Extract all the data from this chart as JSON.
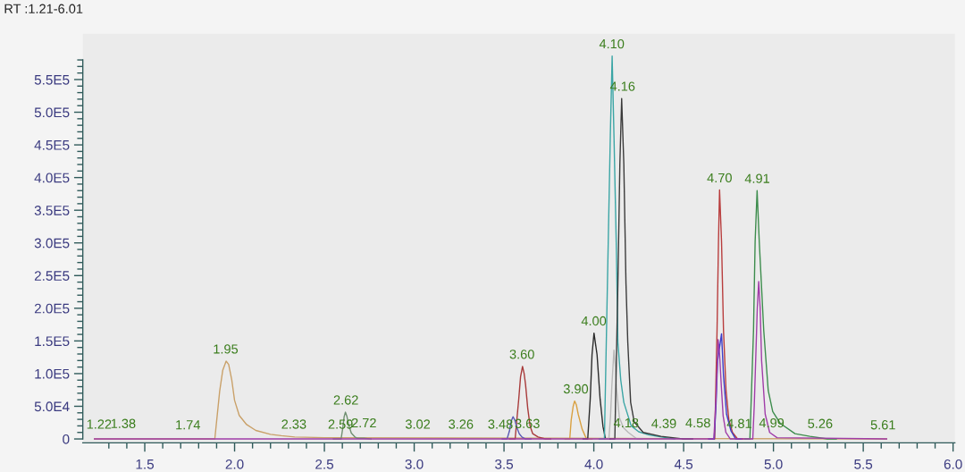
{
  "chart_data": {
    "type": "line",
    "title": "RT :1.21-6.01",
    "xlim": [
      1.155,
      6.01
    ],
    "ylim": [
      -6000,
      620000
    ],
    "xticks": [
      {
        "value": 1.3,
        "label": null
      },
      {
        "value": 1.4,
        "label": null
      },
      1.5,
      {
        "value": 1.6,
        "label": null
      },
      {
        "value": 1.7,
        "label": null
      },
      {
        "value": 1.8,
        "label": null
      },
      {
        "value": 1.9,
        "label": null
      },
      {
        "value": 2,
        "label": "2.0"
      },
      {
        "value": 2.1,
        "label": null
      },
      {
        "value": 2.2,
        "label": null
      },
      {
        "value": 2.3,
        "label": null
      },
      {
        "value": 2.4,
        "label": null
      },
      2.5,
      {
        "value": 2.6,
        "label": null
      },
      {
        "value": 2.7,
        "label": null
      },
      {
        "value": 2.8,
        "label": null
      },
      {
        "value": 2.9,
        "label": null
      },
      {
        "value": 3,
        "label": "3.0"
      },
      {
        "value": 3.1,
        "label": null
      },
      {
        "value": 3.2,
        "label": null
      },
      {
        "value": 3.3,
        "label": null
      },
      {
        "value": 3.4,
        "label": null
      },
      3.5,
      {
        "value": 3.6,
        "label": null
      },
      {
        "value": 3.7,
        "label": null
      },
      {
        "value": 3.8,
        "label": null
      },
      {
        "value": 3.9,
        "label": null
      },
      {
        "value": 4,
        "label": "4.0"
      },
      {
        "value": 4.1,
        "label": null
      },
      {
        "value": 4.2,
        "label": null
      },
      {
        "value": 4.3,
        "label": null
      },
      {
        "value": 4.4,
        "label": null
      },
      4.5,
      {
        "value": 4.6,
        "label": null
      },
      {
        "value": 4.7,
        "label": null
      },
      {
        "value": 4.8,
        "label": null
      },
      {
        "value": 4.9,
        "label": null
      },
      {
        "value": 5,
        "label": "5.0"
      },
      {
        "value": 5.1,
        "label": null
      },
      {
        "value": 5.2,
        "label": null
      },
      {
        "value": 5.3,
        "label": null
      },
      {
        "value": 5.4,
        "label": null
      },
      5.5,
      {
        "value": 5.6,
        "label": null
      },
      {
        "value": 5.7,
        "label": null
      },
      {
        "value": 5.8,
        "label": null
      },
      {
        "value": 5.9,
        "label": null
      },
      {
        "value": 6,
        "label": "6.0"
      }
    ],
    "yticks": [
      0,
      {
        "value": 10000,
        "label": null
      },
      {
        "value": 20000,
        "label": null
      },
      {
        "value": 30000,
        "label": null
      },
      {
        "value": 40000,
        "label": null
      },
      {
        "value": 50000,
        "label": "5.0E4"
      },
      {
        "value": 60000,
        "label": null
      },
      {
        "value": 70000,
        "label": null
      },
      {
        "value": 80000,
        "label": null
      },
      {
        "value": 90000,
        "label": null
      },
      {
        "value": 100000,
        "label": "1.0E5"
      },
      {
        "value": 110000,
        "label": null
      },
      {
        "value": 120000,
        "label": null
      },
      {
        "value": 130000,
        "label": null
      },
      {
        "value": 140000,
        "label": null
      },
      {
        "value": 150000,
        "label": "1.5E5"
      },
      {
        "value": 160000,
        "label": null
      },
      {
        "value": 170000,
        "label": null
      },
      {
        "value": 180000,
        "label": null
      },
      {
        "value": 190000,
        "label": null
      },
      {
        "value": 200000,
        "label": "2.0E5"
      },
      {
        "value": 210000,
        "label": null
      },
      {
        "value": 220000,
        "label": null
      },
      {
        "value": 230000,
        "label": null
      },
      {
        "value": 240000,
        "label": null
      },
      {
        "value": 250000,
        "label": "2.5E5"
      },
      {
        "value": 260000,
        "label": null
      },
      {
        "value": 270000,
        "label": null
      },
      {
        "value": 280000,
        "label": null
      },
      {
        "value": 290000,
        "label": null
      },
      {
        "value": 300000,
        "label": "3.0E5"
      },
      {
        "value": 310000,
        "label": null
      },
      {
        "value": 320000,
        "label": null
      },
      {
        "value": 330000,
        "label": null
      },
      {
        "value": 340000,
        "label": null
      },
      {
        "value": 350000,
        "label": "3.5E5"
      },
      {
        "value": 360000,
        "label": null
      },
      {
        "value": 370000,
        "label": null
      },
      {
        "value": 380000,
        "label": null
      },
      {
        "value": 390000,
        "label": null
      },
      {
        "value": 400000,
        "label": "4.0E5"
      },
      {
        "value": 410000,
        "label": null
      },
      {
        "value": 420000,
        "label": null
      },
      {
        "value": 430000,
        "label": null
      },
      {
        "value": 440000,
        "label": null
      },
      {
        "value": 450000,
        "label": "4.5E5"
      },
      {
        "value": 460000,
        "label": null
      },
      {
        "value": 470000,
        "label": null
      },
      {
        "value": 480000,
        "label": null
      },
      {
        "value": 490000,
        "label": null
      },
      {
        "value": 500000,
        "label": "5.0E5"
      },
      {
        "value": 510000,
        "label": null
      },
      {
        "value": 520000,
        "label": null
      },
      {
        "value": 530000,
        "label": null
      },
      {
        "value": 540000,
        "label": null
      },
      {
        "value": 550000,
        "label": "5.5E5"
      },
      {
        "value": 560000,
        "label": null
      },
      {
        "value": 570000,
        "label": null
      },
      {
        "value": 580000,
        "label": null
      }
    ],
    "series": [
      {
        "color": "#c9a068",
        "x": [
          1.22,
          1.89,
          1.917,
          1.934,
          1.953,
          1.967,
          1.984,
          2.0,
          2.026,
          2.067,
          2.118,
          2.2,
          2.26,
          2.335,
          2.5,
          3.8,
          5.63
        ],
        "values": [
          0,
          0,
          73000,
          105000,
          119000,
          114000,
          91000,
          59000,
          36000,
          22000,
          13000,
          7000,
          5000,
          3000,
          2000,
          1000,
          0
        ]
      },
      {
        "color": "#d9a040",
        "x": [
          3.84,
          3.866,
          3.874,
          3.885,
          3.893,
          3.903,
          3.913,
          3.935,
          3.951,
          3.96,
          3.99
        ],
        "values": [
          0,
          0,
          29000,
          50000,
          58000,
          52000,
          38000,
          15000,
          5000,
          0,
          0
        ]
      },
      {
        "color": "#6f8f70",
        "x": [
          2.55,
          2.593,
          2.603,
          2.61,
          2.617,
          2.625,
          2.635,
          2.65,
          2.67,
          2.684,
          2.72,
          2.76
        ],
        "values": [
          0,
          0,
          18000,
          34000,
          41000,
          35000,
          22000,
          9000,
          3000,
          1000,
          1000,
          0
        ]
      },
      {
        "color": "#a83a3a",
        "x": [
          3.53,
          3.562,
          3.57,
          3.582,
          3.592,
          3.603,
          3.612,
          3.62,
          3.632,
          3.645,
          3.66,
          3.69,
          3.73,
          3.76
        ],
        "values": [
          0,
          0,
          25000,
          61000,
          95000,
          111000,
          100000,
          83000,
          47000,
          20000,
          8000,
          3000,
          0,
          0
        ]
      },
      {
        "color": "#5a5ab4",
        "x": [
          3.49,
          3.517,
          3.53,
          3.54,
          3.55,
          3.56,
          3.572,
          3.585,
          3.6,
          3.62,
          3.65
        ],
        "values": [
          0,
          0,
          12000,
          27000,
          34000,
          29000,
          17000,
          8000,
          3000,
          0,
          0
        ]
      },
      {
        "color": "#2a2a2a",
        "x": [
          3.94,
          3.966,
          3.98,
          3.99,
          4.001,
          4.018,
          4.035,
          4.051,
          4.065,
          4.09
        ],
        "values": [
          0,
          0,
          61000,
          129000,
          162000,
          129000,
          61000,
          19000,
          0,
          0
        ]
      },
      {
        "color": "#b8b8b8",
        "x": [
          4.06,
          4.084,
          4.093,
          4.1,
          4.112,
          4.12,
          4.126,
          4.142,
          4.165,
          4.192,
          4.24,
          4.27
        ],
        "values": [
          0,
          0,
          35000,
          79000,
          136000,
          110000,
          79000,
          33000,
          17000,
          10000,
          0,
          0
        ]
      },
      {
        "color": "#3aa5a5",
        "x": [
          4.03,
          4.059,
          4.079,
          4.092,
          4.102,
          4.112,
          4.126,
          4.134,
          4.15,
          4.167,
          4.208,
          4.25,
          4.308,
          4.4,
          4.45
        ],
        "values": [
          0,
          0,
          284000,
          466000,
          586000,
          466000,
          284000,
          148000,
          90000,
          56000,
          20000,
          11000,
          6000,
          2000,
          0
        ]
      },
      {
        "color": "#3a3a3a",
        "x": [
          4.09,
          4.117,
          4.134,
          4.145,
          4.155,
          4.167,
          4.179,
          4.189,
          4.205,
          4.225,
          4.275,
          4.374,
          4.5,
          4.55
        ],
        "values": [
          0,
          0,
          238000,
          421000,
          521000,
          421000,
          238000,
          148000,
          56000,
          26000,
          10000,
          4000,
          0,
          0
        ]
      },
      {
        "color": "#b83c3c",
        "x": [
          4.64,
          4.673,
          4.686,
          4.694,
          4.7,
          4.711,
          4.722,
          4.736,
          4.752,
          4.772,
          4.8,
          4.83
        ],
        "values": [
          0,
          0,
          166000,
          302000,
          381000,
          302000,
          166000,
          74000,
          29000,
          10000,
          0,
          0
        ]
      },
      {
        "color": "#3c3cc8",
        "x": [
          4.64,
          4.67,
          4.68,
          4.689,
          4.7,
          4.711,
          4.722,
          4.739,
          4.764,
          4.79,
          4.82
        ],
        "values": [
          0,
          0,
          50000,
          120000,
          140000,
          161000,
          97000,
          38000,
          12000,
          0,
          0
        ]
      },
      {
        "color": "#3c8c4c",
        "x": [
          4.84,
          4.869,
          4.889,
          4.898,
          4.909,
          4.921,
          4.946,
          4.971,
          4.996,
          5.037,
          5.12,
          5.203,
          5.3,
          5.35
        ],
        "values": [
          0,
          0,
          166000,
          302000,
          380000,
          302000,
          166000,
          74000,
          42000,
          24000,
          8000,
          4000,
          0,
          0
        ]
      },
      {
        "color": "#a03ca8",
        "x": [
          1.22,
          4.668,
          4.68,
          4.692,
          4.7,
          4.71,
          4.72,
          4.735,
          4.76,
          4.885,
          4.893,
          4.901,
          4.91,
          4.918,
          4.926,
          4.934,
          4.954,
          4.979,
          5.02,
          5.63
        ],
        "values": [
          0,
          0,
          60000,
          152000,
          130000,
          80000,
          35000,
          10000,
          0,
          0,
          50000,
          120000,
          200000,
          241000,
          200000,
          120000,
          38000,
          10000,
          2000,
          0
        ]
      }
    ],
    "annotations": [
      {
        "text": "1.22",
        "x": 1.22,
        "y": 4000
      },
      {
        "text": "1.38",
        "x": 1.38,
        "y": 5000
      },
      {
        "text": "1.74",
        "x": 1.74,
        "y": 3000
      },
      {
        "text": "1.95",
        "x": 1.95,
        "y": 119000
      },
      {
        "text": "2.33",
        "x": 2.33,
        "y": 4000
      },
      {
        "text": "2.59",
        "x": 2.59,
        "y": 4000
      },
      {
        "text": "2.62",
        "x": 2.62,
        "y": 41000
      },
      {
        "text": "2.72",
        "x": 2.72,
        "y": 6000
      },
      {
        "text": "3.02",
        "x": 3.02,
        "y": 4000
      },
      {
        "text": "3.26",
        "x": 3.26,
        "y": 4000
      },
      {
        "text": "3.48",
        "x": 3.48,
        "y": 4000
      },
      {
        "text": "3.60",
        "x": 3.6,
        "y": 111000
      },
      {
        "text": "3.63",
        "x": 3.63,
        "y": 5000
      },
      {
        "text": "3.90",
        "x": 3.9,
        "y": 58000
      },
      {
        "text": "4.00",
        "x": 4.0,
        "y": 162000
      },
      {
        "text": "4.10",
        "x": 4.1,
        "y": 586000
      },
      {
        "text": "4.16",
        "x": 4.16,
        "y": 521000
      },
      {
        "text": "4.18",
        "x": 4.18,
        "y": 6000
      },
      {
        "text": "4.39",
        "x": 4.39,
        "y": 5000
      },
      {
        "text": "4.58",
        "x": 4.58,
        "y": 6000
      },
      {
        "text": "4.70",
        "x": 4.7,
        "y": 381000
      },
      {
        "text": "4.81",
        "x": 4.81,
        "y": 5000
      },
      {
        "text": "4.91",
        "x": 4.91,
        "y": 380000
      },
      {
        "text": "4.99",
        "x": 4.99,
        "y": 6000
      },
      {
        "text": "5.26",
        "x": 5.26,
        "y": 5000
      },
      {
        "text": "5.61",
        "x": 5.61,
        "y": 3000
      }
    ]
  }
}
